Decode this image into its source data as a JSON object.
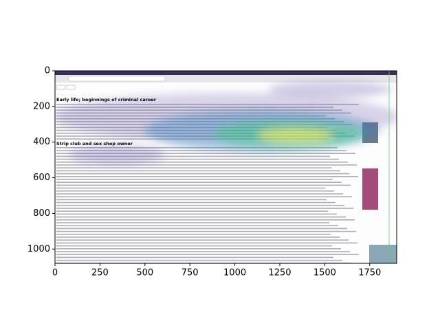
{
  "chart_data": {
    "type": "image",
    "xlim": [
      0,
      1900
    ],
    "ylim": [
      1080,
      0
    ],
    "xticks": [
      0,
      250,
      500,
      750,
      1000,
      1250,
      1500,
      1750
    ],
    "yticks": [
      0,
      200,
      400,
      600,
      800,
      1000
    ],
    "headings": [
      "Early life; beginnings of criminal career",
      "Strip club and sex shop owner"
    ]
  }
}
